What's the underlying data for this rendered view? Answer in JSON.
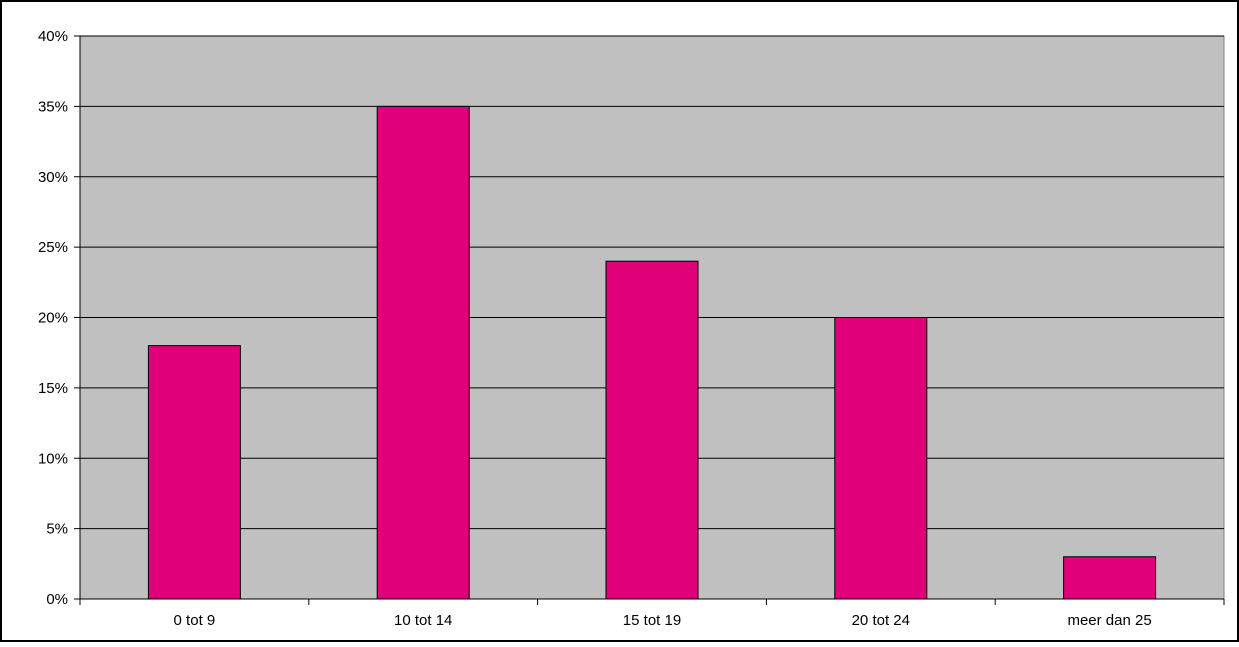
{
  "chart_data": {
    "type": "bar",
    "categories": [
      "0 tot 9",
      "10 tot 14",
      "15 tot 19",
      "20 tot 24",
      "meer dan 25"
    ],
    "values": [
      18,
      35,
      24,
      20,
      3
    ],
    "value_unit": "%",
    "y_ticks": [
      "0%",
      "5%",
      "10%",
      "15%",
      "20%",
      "25%",
      "30%",
      "35%",
      "40%"
    ],
    "ylim": [
      0,
      40
    ],
    "grid": true,
    "legend": "none",
    "colors": {
      "bar": "#e0007a",
      "plot_background": "#c0c0c0",
      "gridline": "#000000",
      "outer_border": "#000000"
    }
  }
}
